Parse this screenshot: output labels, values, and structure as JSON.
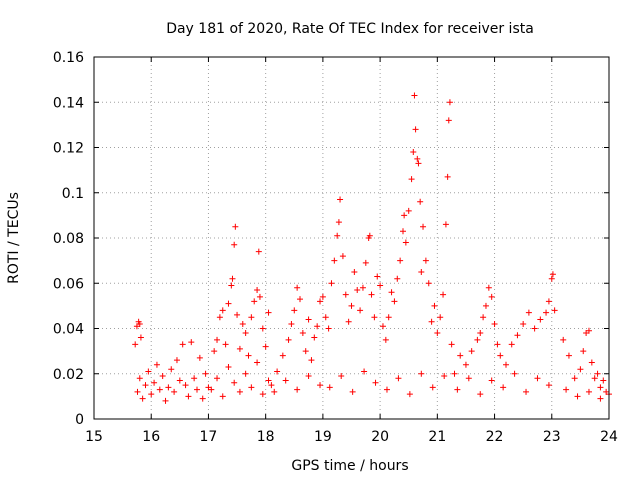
{
  "chart_data": {
    "type": "scatter",
    "title": "Day 181 of 2020, Rate Of TEC Index for receiver ista",
    "xlabel": "GPS time / hours",
    "ylabel": "ROTI / TECUs",
    "xlim": [
      15,
      24
    ],
    "ylim": [
      0,
      0.16
    ],
    "xticks": [
      15,
      16,
      17,
      18,
      19,
      20,
      21,
      22,
      23,
      24
    ],
    "xtick_labels": [
      "15",
      "16",
      "17",
      "18",
      "19",
      "20",
      "21",
      "22",
      "23",
      "24"
    ],
    "yticks": [
      0,
      0.02,
      0.04,
      0.06,
      0.08,
      0.1,
      0.12,
      0.14,
      0.16
    ],
    "ytick_labels": [
      "0",
      "0.02",
      "0.04",
      "0.06",
      "0.08",
      "0.1",
      "0.12",
      "0.14",
      "0.16"
    ],
    "grid": true,
    "marker": "+",
    "color": "#ff0000",
    "series": [
      {
        "name": "ROTI",
        "points": [
          [
            15.72,
            0.033
          ],
          [
            15.75,
            0.041
          ],
          [
            15.78,
            0.043
          ],
          [
            15.8,
            0.042
          ],
          [
            15.82,
            0.036
          ],
          [
            15.76,
            0.012
          ],
          [
            15.8,
            0.018
          ],
          [
            15.85,
            0.009
          ],
          [
            15.9,
            0.015
          ],
          [
            15.95,
            0.021
          ],
          [
            16.0,
            0.011
          ],
          [
            16.05,
            0.016
          ],
          [
            16.1,
            0.024
          ],
          [
            16.15,
            0.013
          ],
          [
            16.2,
            0.019
          ],
          [
            16.25,
            0.008
          ],
          [
            16.3,
            0.014
          ],
          [
            16.35,
            0.022
          ],
          [
            16.4,
            0.012
          ],
          [
            16.45,
            0.026
          ],
          [
            16.5,
            0.017
          ],
          [
            16.55,
            0.033
          ],
          [
            16.6,
            0.015
          ],
          [
            16.65,
            0.01
          ],
          [
            16.7,
            0.034
          ],
          [
            16.75,
            0.018
          ],
          [
            16.8,
            0.013
          ],
          [
            16.85,
            0.027
          ],
          [
            16.9,
            0.009
          ],
          [
            16.95,
            0.02
          ],
          [
            17.0,
            0.014
          ],
          [
            17.1,
            0.03
          ],
          [
            17.15,
            0.035
          ],
          [
            17.2,
            0.045
          ],
          [
            17.25,
            0.048
          ],
          [
            17.3,
            0.033
          ],
          [
            17.35,
            0.051
          ],
          [
            17.4,
            0.059
          ],
          [
            17.42,
            0.062
          ],
          [
            17.45,
            0.077
          ],
          [
            17.47,
            0.085
          ],
          [
            17.5,
            0.046
          ],
          [
            17.55,
            0.031
          ],
          [
            17.6,
            0.042
          ],
          [
            17.65,
            0.038
          ],
          [
            17.7,
            0.028
          ],
          [
            17.75,
            0.045
          ],
          [
            17.8,
            0.052
          ],
          [
            17.85,
            0.057
          ],
          [
            17.88,
            0.074
          ],
          [
            17.9,
            0.054
          ],
          [
            17.95,
            0.04
          ],
          [
            18.0,
            0.032
          ],
          [
            18.05,
            0.047
          ],
          [
            17.05,
            0.013
          ],
          [
            17.15,
            0.018
          ],
          [
            17.25,
            0.01
          ],
          [
            17.35,
            0.023
          ],
          [
            17.45,
            0.016
          ],
          [
            17.55,
            0.012
          ],
          [
            17.65,
            0.02
          ],
          [
            17.75,
            0.014
          ],
          [
            17.85,
            0.025
          ],
          [
            17.95,
            0.011
          ],
          [
            18.05,
            0.017
          ],
          [
            18.1,
            0.015
          ],
          [
            18.2,
            0.021
          ],
          [
            18.3,
            0.028
          ],
          [
            18.4,
            0.035
          ],
          [
            18.45,
            0.042
          ],
          [
            18.5,
            0.048
          ],
          [
            18.55,
            0.058
          ],
          [
            18.6,
            0.053
          ],
          [
            18.65,
            0.038
          ],
          [
            18.7,
            0.03
          ],
          [
            18.75,
            0.044
          ],
          [
            18.8,
            0.026
          ],
          [
            18.85,
            0.036
          ],
          [
            18.9,
            0.041
          ],
          [
            18.95,
            0.052
          ],
          [
            19.0,
            0.054
          ],
          [
            19.05,
            0.045
          ],
          [
            18.15,
            0.012
          ],
          [
            18.35,
            0.017
          ],
          [
            18.55,
            0.013
          ],
          [
            18.75,
            0.019
          ],
          [
            18.95,
            0.015
          ],
          [
            19.1,
            0.04
          ],
          [
            19.15,
            0.06
          ],
          [
            19.2,
            0.07
          ],
          [
            19.25,
            0.081
          ],
          [
            19.28,
            0.087
          ],
          [
            19.3,
            0.097
          ],
          [
            19.35,
            0.072
          ],
          [
            19.4,
            0.055
          ],
          [
            19.45,
            0.043
          ],
          [
            19.5,
            0.05
          ],
          [
            19.55,
            0.065
          ],
          [
            19.6,
            0.057
          ],
          [
            19.65,
            0.048
          ],
          [
            19.7,
            0.058
          ],
          [
            19.75,
            0.069
          ],
          [
            19.8,
            0.08
          ],
          [
            19.82,
            0.081
          ],
          [
            19.85,
            0.055
          ],
          [
            19.9,
            0.045
          ],
          [
            19.95,
            0.063
          ],
          [
            20.0,
            0.059
          ],
          [
            20.05,
            0.041
          ],
          [
            19.12,
            0.014
          ],
          [
            19.32,
            0.019
          ],
          [
            19.52,
            0.012
          ],
          [
            19.72,
            0.021
          ],
          [
            19.92,
            0.016
          ],
          [
            20.1,
            0.035
          ],
          [
            20.15,
            0.045
          ],
          [
            20.2,
            0.056
          ],
          [
            20.25,
            0.052
          ],
          [
            20.3,
            0.062
          ],
          [
            20.35,
            0.07
          ],
          [
            20.4,
            0.083
          ],
          [
            20.42,
            0.09
          ],
          [
            20.45,
            0.078
          ],
          [
            20.5,
            0.092
          ],
          [
            20.55,
            0.106
          ],
          [
            20.58,
            0.118
          ],
          [
            20.6,
            0.143
          ],
          [
            20.62,
            0.128
          ],
          [
            20.65,
            0.115
          ],
          [
            20.67,
            0.113
          ],
          [
            20.7,
            0.096
          ],
          [
            20.72,
            0.065
          ],
          [
            20.75,
            0.085
          ],
          [
            20.8,
            0.07
          ],
          [
            20.85,
            0.06
          ],
          [
            20.9,
            0.043
          ],
          [
            20.95,
            0.05
          ],
          [
            21.0,
            0.038
          ],
          [
            21.05,
            0.045
          ],
          [
            21.1,
            0.055
          ],
          [
            21.15,
            0.086
          ],
          [
            21.18,
            0.107
          ],
          [
            21.2,
            0.132
          ],
          [
            21.22,
            0.14
          ],
          [
            21.25,
            0.033
          ],
          [
            20.12,
            0.013
          ],
          [
            20.32,
            0.018
          ],
          [
            20.52,
            0.011
          ],
          [
            20.72,
            0.02
          ],
          [
            20.92,
            0.014
          ],
          [
            21.12,
            0.019
          ],
          [
            21.3,
            0.02
          ],
          [
            21.4,
            0.028
          ],
          [
            21.5,
            0.024
          ],
          [
            21.6,
            0.03
          ],
          [
            21.7,
            0.035
          ],
          [
            21.75,
            0.038
          ],
          [
            21.8,
            0.045
          ],
          [
            21.85,
            0.05
          ],
          [
            21.9,
            0.058
          ],
          [
            21.95,
            0.054
          ],
          [
            22.0,
            0.042
          ],
          [
            22.05,
            0.033
          ],
          [
            22.1,
            0.028
          ],
          [
            22.2,
            0.024
          ],
          [
            22.3,
            0.033
          ],
          [
            22.4,
            0.037
          ],
          [
            22.5,
            0.042
          ],
          [
            22.6,
            0.047
          ],
          [
            22.7,
            0.04
          ],
          [
            22.8,
            0.044
          ],
          [
            22.9,
            0.047
          ],
          [
            22.95,
            0.052
          ],
          [
            23.0,
            0.062
          ],
          [
            23.02,
            0.064
          ],
          [
            23.05,
            0.048
          ],
          [
            21.35,
            0.013
          ],
          [
            21.55,
            0.018
          ],
          [
            21.75,
            0.011
          ],
          [
            21.95,
            0.017
          ],
          [
            22.15,
            0.014
          ],
          [
            22.35,
            0.02
          ],
          [
            22.55,
            0.012
          ],
          [
            22.75,
            0.018
          ],
          [
            22.95,
            0.015
          ],
          [
            23.2,
            0.035
          ],
          [
            23.3,
            0.028
          ],
          [
            23.4,
            0.018
          ],
          [
            23.5,
            0.022
          ],
          [
            23.55,
            0.03
          ],
          [
            23.6,
            0.038
          ],
          [
            23.65,
            0.039
          ],
          [
            23.7,
            0.025
          ],
          [
            23.75,
            0.018
          ],
          [
            23.8,
            0.02
          ],
          [
            23.85,
            0.014
          ],
          [
            23.9,
            0.017
          ],
          [
            23.95,
            0.012
          ],
          [
            24.0,
            0.011
          ],
          [
            23.25,
            0.013
          ],
          [
            23.45,
            0.01
          ],
          [
            23.65,
            0.012
          ],
          [
            23.85,
            0.009
          ]
        ]
      }
    ]
  }
}
